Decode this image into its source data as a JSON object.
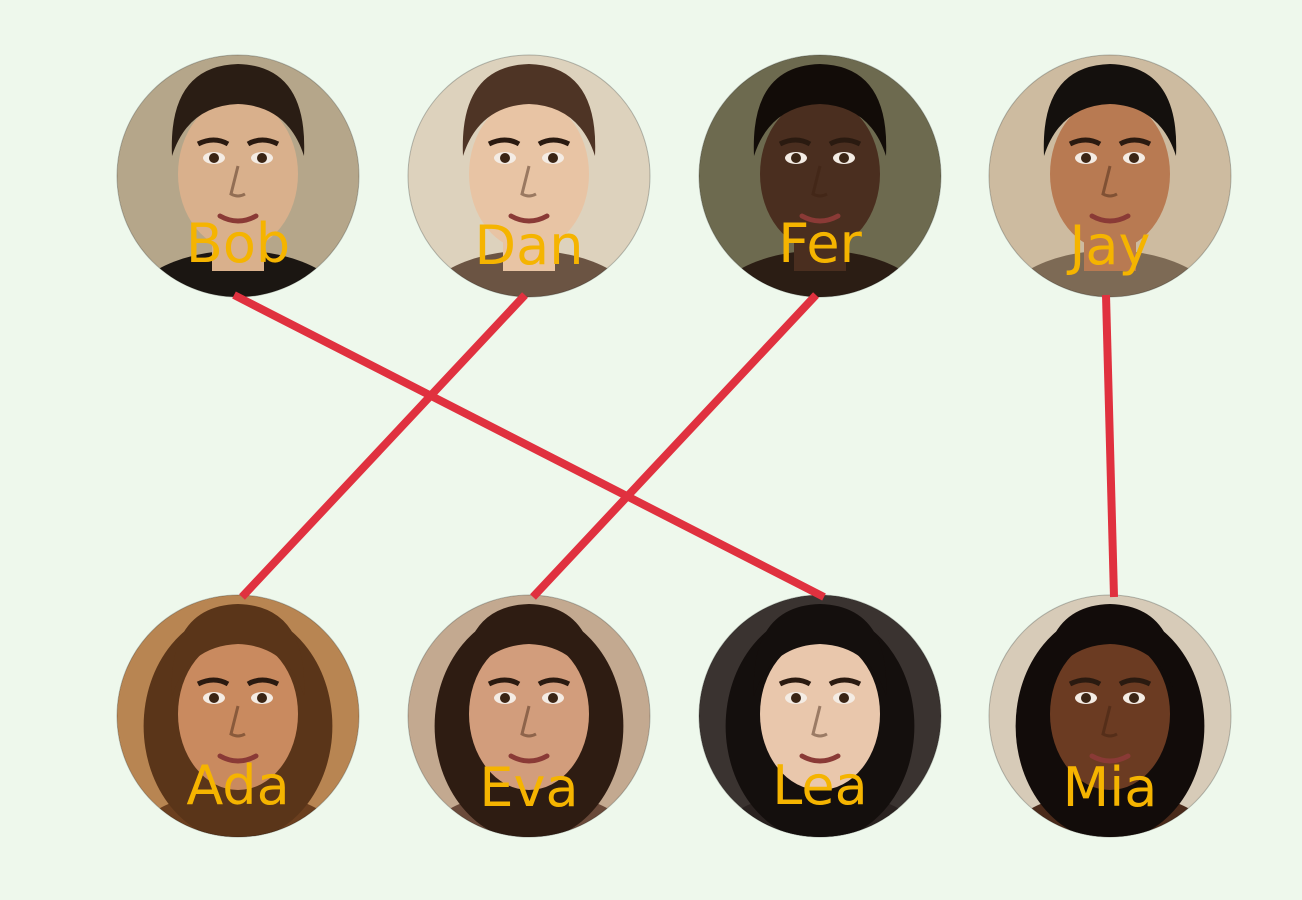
{
  "people": {
    "top": [
      {
        "id": "bob",
        "name": "Bob",
        "hair": "#2a1d14",
        "skin": "#d9b08c",
        "bg": "#b5a68a",
        "shirt": "#1b1612"
      },
      {
        "id": "dan",
        "name": "Dan",
        "hair": "#4e3425",
        "skin": "#e8c4a4",
        "bg": "#ddd2bd",
        "shirt": "#6b5443"
      },
      {
        "id": "fer",
        "name": "Fer",
        "hair": "#120c08",
        "skin": "#4a2e1f",
        "bg": "#6d6a4f",
        "shirt": "#2b1d14"
      },
      {
        "id": "jay",
        "name": "Jay",
        "hair": "#14100d",
        "skin": "#b87a52",
        "bg": "#cdbba0",
        "shirt": "#7d6a55"
      }
    ],
    "bottom": [
      {
        "id": "ada",
        "name": "Ada",
        "hair": "#5a3519",
        "skin": "#c98a5f",
        "bg": "#b88552",
        "shirt": "#6b3f1f"
      },
      {
        "id": "eva",
        "name": "Eva",
        "hair": "#2e1c12",
        "skin": "#d29d7c",
        "bg": "#c3a990",
        "shirt": "#6a4a3a"
      },
      {
        "id": "lea",
        "name": "Lea",
        "hair": "#140f0d",
        "skin": "#e9c7ac",
        "bg": "#3a3330",
        "shirt": "#2a2220"
      },
      {
        "id": "mia",
        "name": "Mia",
        "hair": "#120c0a",
        "skin": "#6b3b22",
        "bg": "#d7cbb8",
        "shirt": "#4a2a1a"
      }
    ]
  },
  "connections": [
    {
      "from": "bob",
      "to": "lea"
    },
    {
      "from": "dan",
      "to": "ada"
    },
    {
      "from": "fer",
      "to": "eva"
    },
    {
      "from": "jay",
      "to": "mia"
    }
  ],
  "colors": {
    "background": "#eef8ec",
    "line": "#e0313f",
    "label": "#f5b400"
  }
}
